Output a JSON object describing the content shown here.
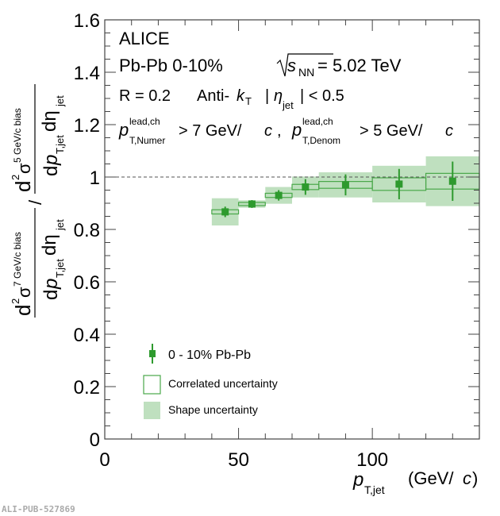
{
  "chart_data": {
    "type": "scatter",
    "title": "",
    "xlabel": "p_T,jet (GeV/c)",
    "ylabel": "(d²σ^7 GeV/c bias / dp_T,jet dη_jet) / (d²σ^5 GeV/c bias / dp_T,jet dη_jet)",
    "xlim": [
      0,
      140
    ],
    "ylim": [
      0,
      1.6
    ],
    "xticks": [
      "0",
      "50",
      "100"
    ],
    "xtick_values": [
      0,
      50,
      100
    ],
    "yticks": [
      "0",
      "0.2",
      "0.4",
      "0.6",
      "0.8",
      "1",
      "1.2",
      "1.4",
      "1.6"
    ],
    "ytick_values": [
      0,
      0.2,
      0.4,
      0.6,
      0.8,
      1.0,
      1.2,
      1.4,
      1.6
    ],
    "reference_line": 1.0,
    "series": [
      {
        "name": "0 - 10% Pb-Pb",
        "color": "#2e9a2e",
        "shape_color": "#bfe0bf",
        "bins": [
          [
            40,
            50
          ],
          [
            50,
            60
          ],
          [
            60,
            70
          ],
          [
            70,
            80
          ],
          [
            80,
            100
          ],
          [
            100,
            120
          ],
          [
            120,
            140
          ]
        ],
        "x": [
          45,
          55,
          65,
          75,
          90,
          110,
          130
        ],
        "y": [
          0.867,
          0.897,
          0.93,
          0.962,
          0.97,
          0.973,
          0.984
        ],
        "stat_err": [
          0.02,
          0.015,
          0.02,
          0.03,
          0.04,
          0.058,
          0.075
        ],
        "correlated_unc": [
          0.008,
          0.006,
          0.008,
          0.01,
          0.013,
          0.024,
          0.03
        ],
        "shape_unc": [
          0.052,
          0.014,
          0.032,
          0.04,
          0.048,
          0.07,
          0.095
        ]
      }
    ],
    "annotations": {
      "experiment": "ALICE",
      "collision": "Pb-Pb  0-10%",
      "energy_label": "s",
      "energy_sub": "NN",
      "energy_value": "= 5.02 TeV",
      "jet_r": "R = 0.2",
      "algo": "Anti-",
      "algo_k": "k",
      "algo_sub": "T",
      "eta_cut_pre": "|",
      "eta_sym": "η",
      "eta_sub": "jet",
      "eta_cut_post": "| < 0.5",
      "p_sym": "p",
      "lead_sup": "lead,ch",
      "numer_sub": "T,Numer",
      "numer_cut": "> 7 GeV/",
      "denom_sub": "T,Denom",
      "denom_cut": "> 5 GeV/",
      "c_sym": "c",
      "comma": ","
    },
    "ylabel_parts": {
      "d2": "d",
      "two": "2",
      "sigma": "σ",
      "num_sup": "7 GeV/c bias",
      "den_sup": "5 GeV/c bias",
      "dp": "d",
      "p": "p",
      "pt_sub": "T,jet",
      "deta": "dη",
      "eta_sub": "jet",
      "slash": "/"
    },
    "xlabel_parts": {
      "p": "p",
      "sub": "T,jet",
      "unit_pre": "(GeV/",
      "unit_c": "c",
      "unit_post": ")"
    },
    "legend": {
      "placement": "bottom-left",
      "entries": [
        {
          "label": "0 - 10% Pb-Pb",
          "style": "marker"
        },
        {
          "label": "Correlated uncertainty",
          "style": "open-box"
        },
        {
          "label": "Shape uncertainty",
          "style": "filled-box"
        }
      ]
    },
    "grid": false
  },
  "footer": {
    "id": "ALI-PUB-527869"
  }
}
